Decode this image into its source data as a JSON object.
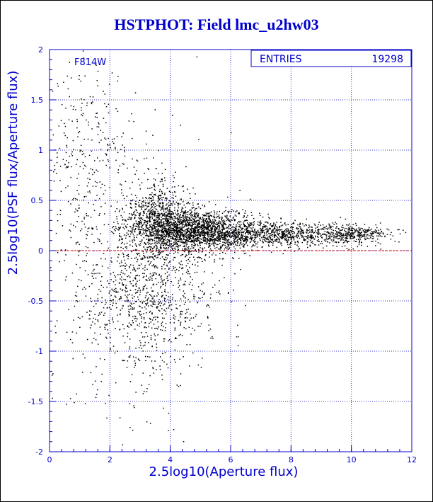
{
  "chart_data": {
    "type": "scatter",
    "title": "HSTPHOT: Field lmc_u2hw03",
    "xlabel": "2.5log10(Aperture flux)",
    "ylabel": "2.5log10(PSF flux/Aperture flux)",
    "xlim": [
      0,
      12
    ],
    "ylim": [
      -2,
      2
    ],
    "x_ticks": [
      "0",
      "2",
      "4",
      "6",
      "8",
      "10",
      "12"
    ],
    "y_ticks": [
      "-2",
      "-1.5",
      "-1",
      "-0.5",
      "0",
      "0.5",
      "1",
      "1.5",
      "2"
    ],
    "grid": true,
    "reference_line_y": 0,
    "filter_label": "F814W",
    "stats_box": {
      "label": "ENTRIES",
      "value": "19298"
    },
    "series": [
      {
        "distribution": "dense ridge at y≈0.1–0.3 for x≈3.5–11, scattered faint points at x<4",
        "regions": [
          {
            "x_center": 3.6,
            "y_center": 0.3,
            "x_spread": 0.5,
            "y_spread": 0.2,
            "weight": 0.14
          },
          {
            "x_center": 4.8,
            "y_center": 0.2,
            "x_spread": 1.0,
            "y_spread": 0.11,
            "weight": 0.34
          },
          {
            "x_center": 7.5,
            "y_center": 0.17,
            "x_spread": 1.6,
            "y_spread": 0.06,
            "weight": 0.2
          },
          {
            "x_center": 10.2,
            "y_center": 0.17,
            "x_spread": 0.6,
            "y_spread": 0.04,
            "weight": 0.04
          },
          {
            "x_center": 3.3,
            "y_center": -0.45,
            "x_spread": 1.1,
            "y_spread": 0.35,
            "weight": 0.16
          },
          {
            "x_center": 2.2,
            "y_center": -0.2,
            "x_spread": 1.3,
            "y_spread": 0.9,
            "weight": 0.07
          },
          {
            "x_center": 1.1,
            "y_center": 0.9,
            "x_spread": 0.7,
            "y_spread": 0.5,
            "weight": 0.05
          }
        ]
      }
    ]
  },
  "colors": {
    "axis": "#0000cc",
    "grid": "#3333cc",
    "points": "#000000",
    "reference_line": "#cc0000",
    "title": "#0000cc"
  }
}
